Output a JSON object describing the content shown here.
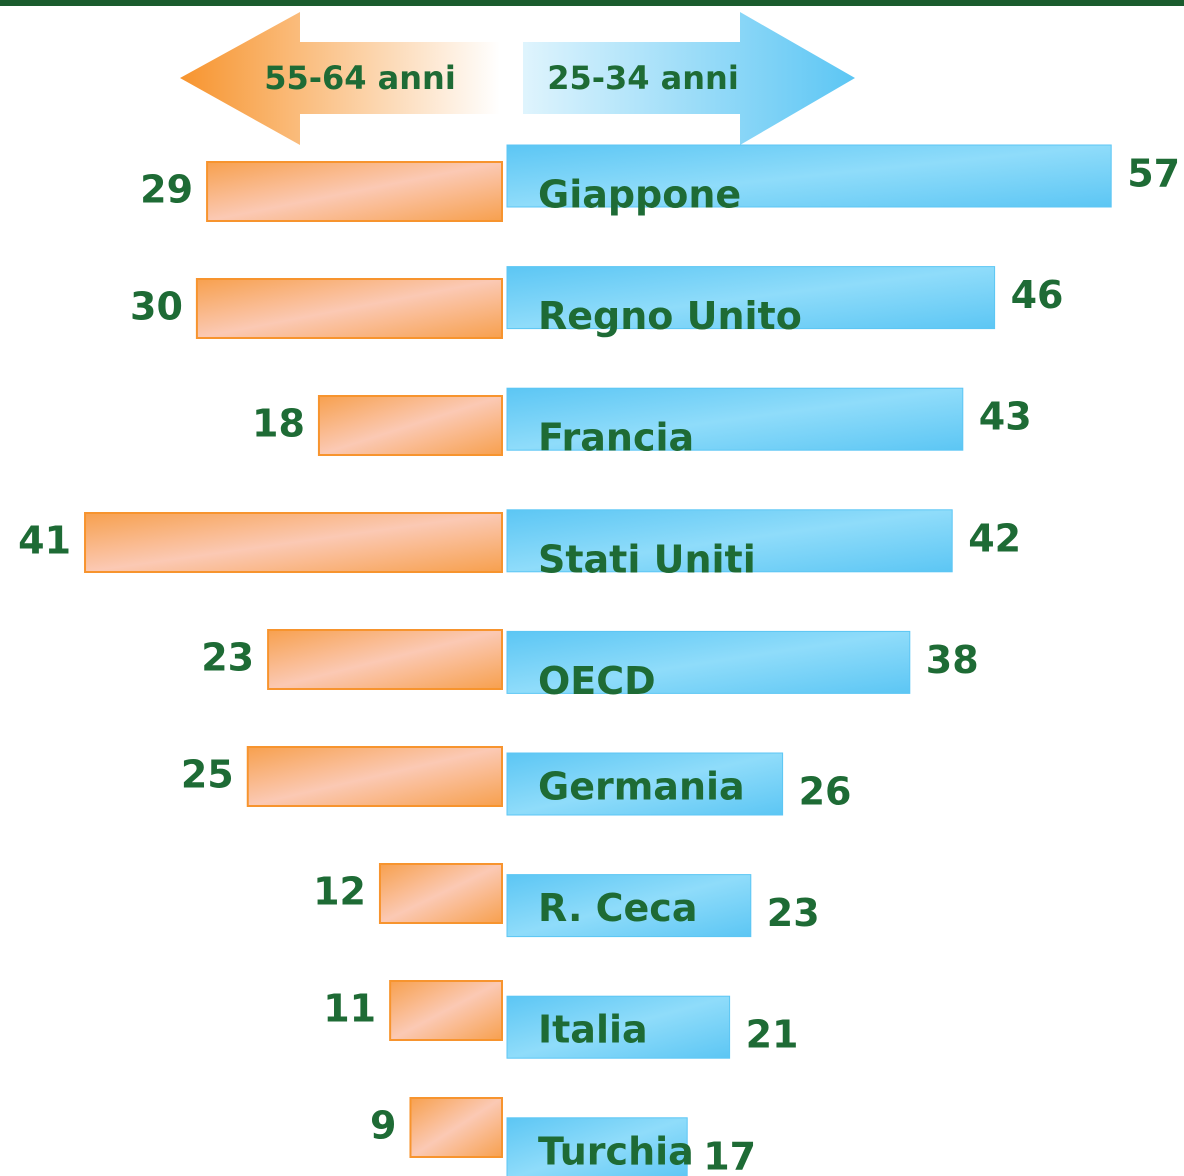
{
  "chart_data": {
    "type": "butterfly",
    "categories": [
      "Giappone",
      "Regno Unito",
      "Francia",
      "Stati Uniti",
      "OECD",
      "Germania",
      "R. Ceca",
      "Italia",
      "Turchia"
    ],
    "series": [
      {
        "name": "55-64 anni",
        "color": "#f7a04e",
        "values": [
          29,
          30,
          18,
          41,
          23,
          25,
          12,
          11,
          9
        ]
      },
      {
        "name": "25-34 anni",
        "color": "#5cc6f4",
        "values": [
          57,
          46,
          43,
          42,
          38,
          26,
          23,
          21,
          17
        ]
      }
    ]
  }
}
